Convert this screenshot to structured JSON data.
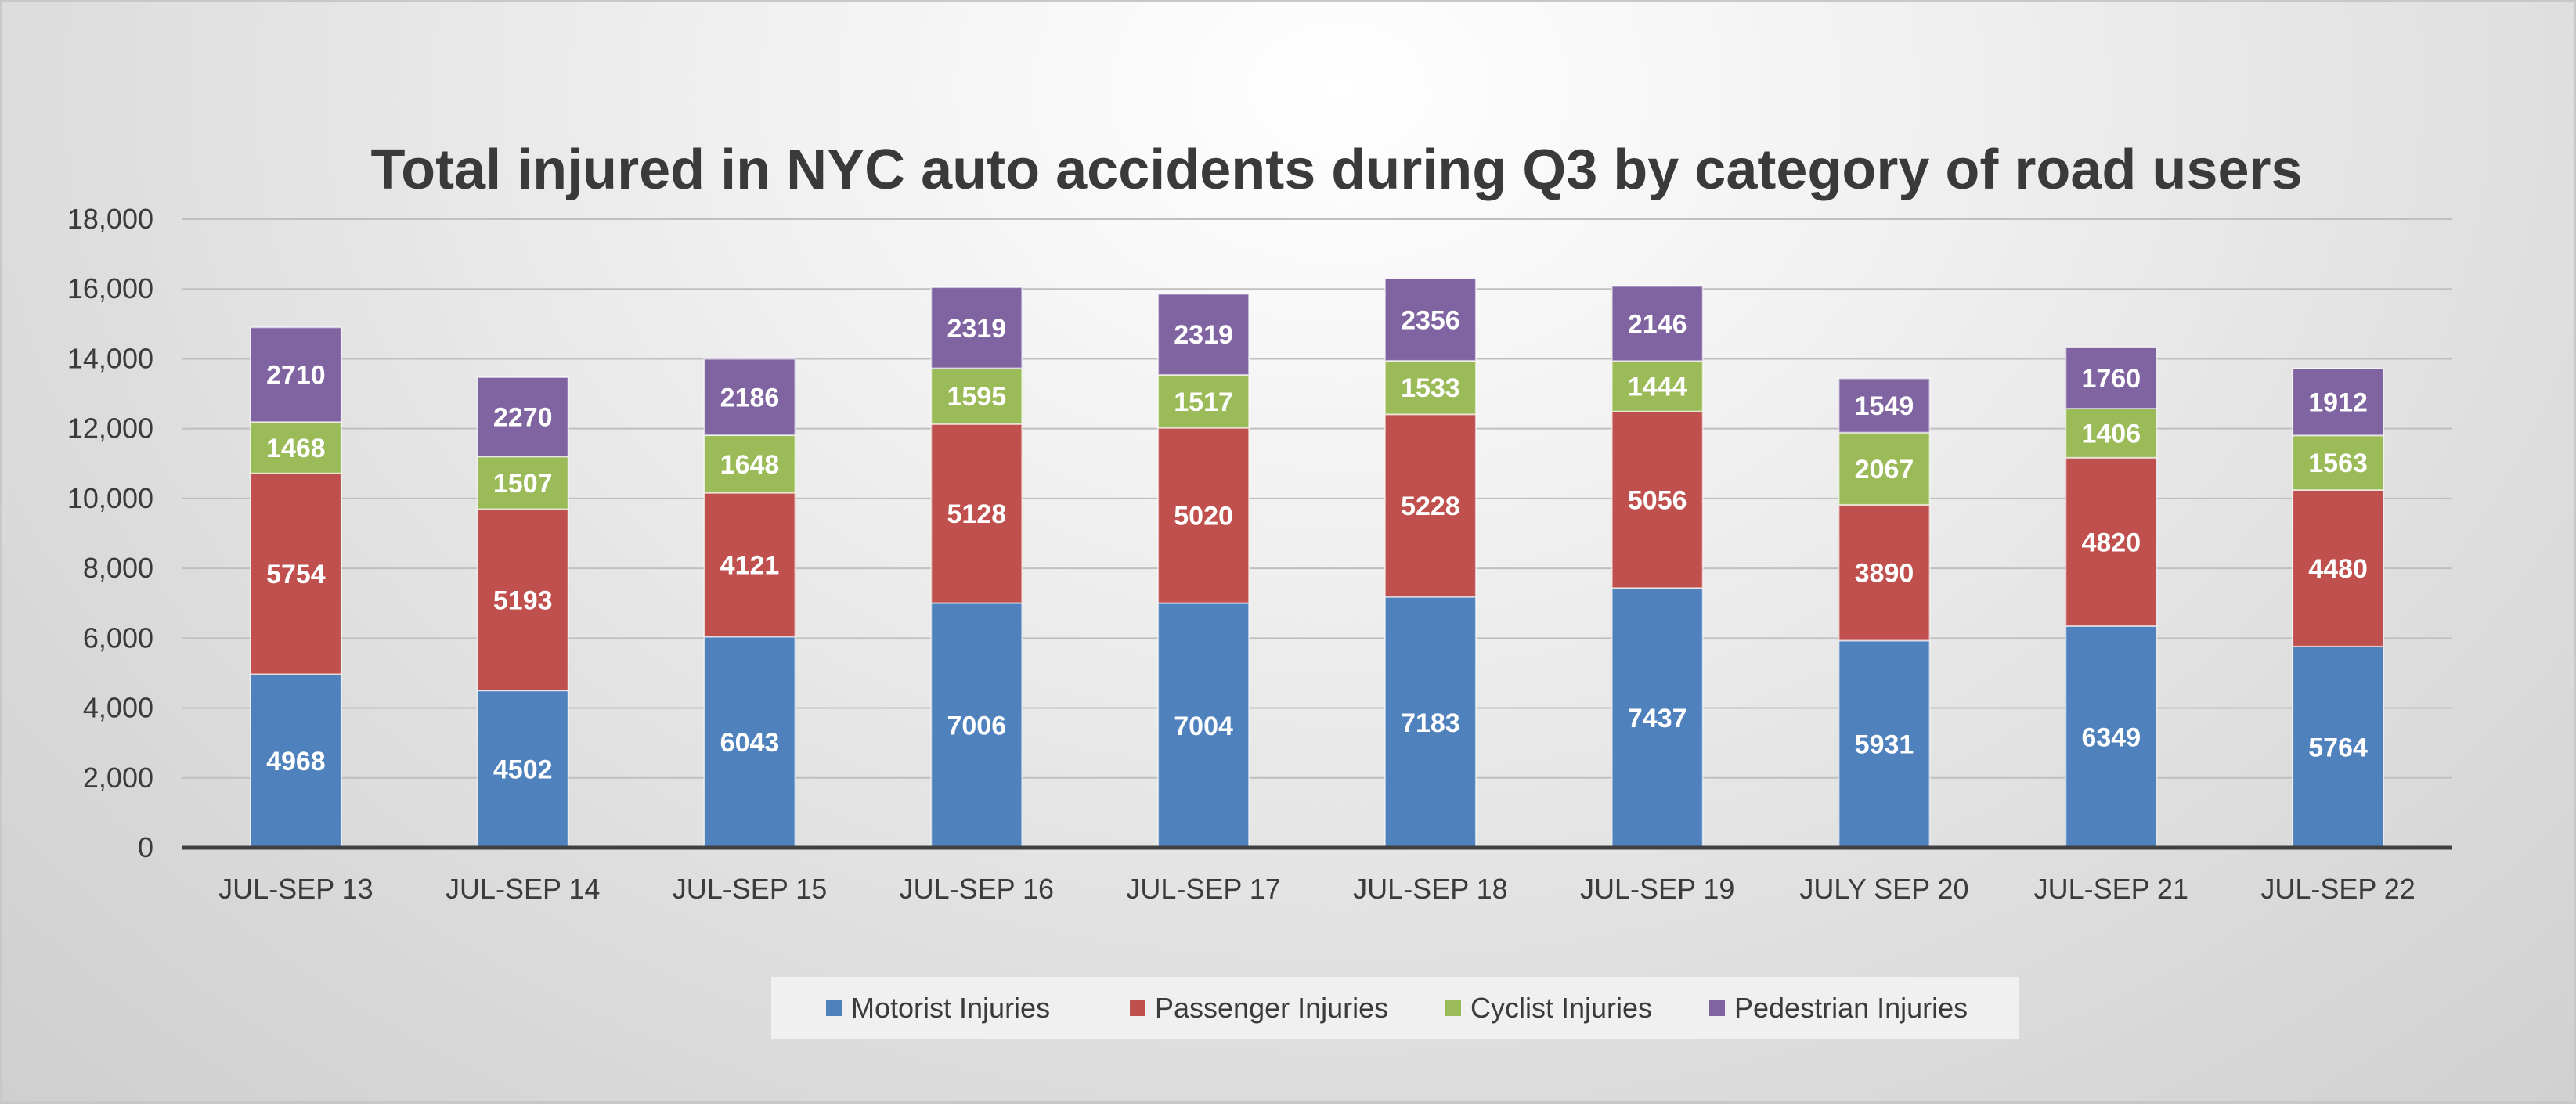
{
  "chart_data": {
    "type": "bar",
    "stacked": true,
    "title": "Total injured in NYC auto accidents during Q3 by category of road users",
    "xlabel": "",
    "ylabel": "",
    "ylim": [
      0,
      18000
    ],
    "y_ticks": [
      "0",
      "2,000",
      "4,000",
      "6,000",
      "8,000",
      "10,000",
      "12,000",
      "14,000",
      "16,000",
      "18,000"
    ],
    "grid": true,
    "legend_position": "bottom",
    "categories": [
      "JUL-SEP 13",
      "JUL-SEP 14",
      "JUL-SEP 15",
      "JUL-SEP 16",
      "JUL-SEP 17",
      "JUL-SEP 18",
      "JUL-SEP 19",
      "JULY SEP 20",
      "JUL-SEP 21",
      "JUL-SEP 22"
    ],
    "series": [
      {
        "name": "Motorist Injuries",
        "color": "#4f81bd",
        "values": [
          4968,
          4502,
          6043,
          7006,
          7004,
          7183,
          7437,
          5931,
          6349,
          5764
        ]
      },
      {
        "name": "Passenger Injuries",
        "color": "#c0504d",
        "values": [
          5754,
          5193,
          4121,
          5128,
          5020,
          5228,
          5056,
          3890,
          4820,
          4480
        ]
      },
      {
        "name": "Cyclist Injuries",
        "color": "#9bbb59",
        "values": [
          1468,
          1507,
          1648,
          1595,
          1517,
          1533,
          1444,
          2067,
          1406,
          1563
        ]
      },
      {
        "name": "Pedestrian Injuries",
        "color": "#8064a2",
        "values": [
          2710,
          2270,
          2186,
          2319,
          2319,
          2356,
          2146,
          1549,
          1760,
          1912
        ]
      }
    ]
  }
}
